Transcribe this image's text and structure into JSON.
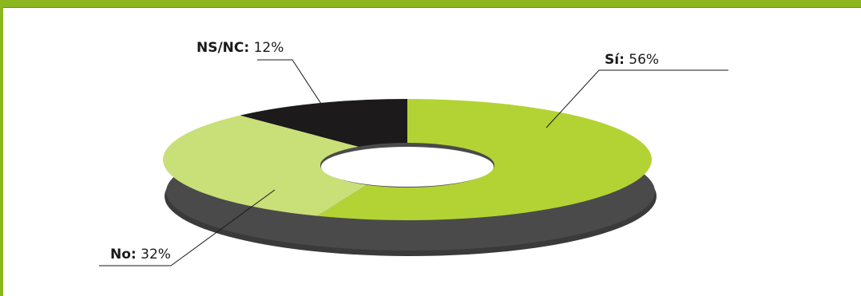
{
  "chart_data": {
    "type": "pie",
    "style": "3d-donut",
    "slices": [
      {
        "label": "Sí",
        "value": 56,
        "display": "56%",
        "color": "#b3d334"
      },
      {
        "label": "No",
        "value": 32,
        "display": "32%",
        "color": "#c9df78"
      },
      {
        "label": "NS/NC",
        "value": 12,
        "display": "12%",
        "color": "#1c1a1b"
      }
    ],
    "title": "",
    "legend": "none"
  },
  "colors": {
    "frame": "#8bb61f",
    "shadow": "#3d3d3d",
    "hole": "#4a4a4a"
  }
}
